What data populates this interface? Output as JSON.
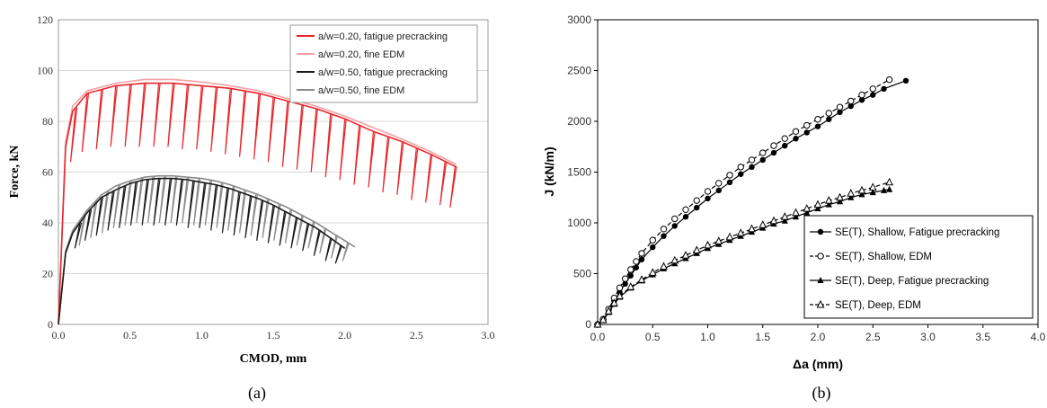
{
  "chart_data": [
    {
      "id": "a",
      "type": "line",
      "caption": "(a)",
      "xlabel": "CMOD, mm",
      "ylabel": "Force, kN",
      "xlim": [
        0,
        3.0
      ],
      "ylim": [
        0,
        120
      ],
      "xticks": [
        "0.0",
        "0.5",
        "1.0",
        "1.5",
        "2.0",
        "2.5",
        "3.0"
      ],
      "yticks": [
        "0",
        "20",
        "40",
        "60",
        "80",
        "100",
        "120"
      ],
      "grid": true,
      "legend_position": "top-right",
      "series": [
        {
          "name": "a/w=0.20, fatigue precracking",
          "color": "#e8262b",
          "envelope": [
            [
              0,
              0
            ],
            [
              0.05,
              70
            ],
            [
              0.1,
              84
            ],
            [
              0.2,
              91
            ],
            [
              0.4,
              94
            ],
            [
              0.6,
              95
            ],
            [
              0.8,
              95
            ],
            [
              1.0,
              94
            ],
            [
              1.2,
              93
            ],
            [
              1.4,
              91
            ],
            [
              1.6,
              88
            ],
            [
              1.8,
              85
            ],
            [
              2.0,
              81
            ],
            [
              2.2,
              76
            ],
            [
              2.4,
              72
            ],
            [
              2.6,
              67
            ],
            [
              2.78,
              62
            ]
          ],
          "unloads": [
            [
              0.12,
              64
            ],
            [
              0.2,
              68
            ],
            [
              0.3,
              69
            ],
            [
              0.4,
              70
            ],
            [
              0.5,
              70
            ],
            [
              0.6,
              70
            ],
            [
              0.7,
              70
            ],
            [
              0.8,
              70
            ],
            [
              0.9,
              69
            ],
            [
              1.0,
              69
            ],
            [
              1.1,
              68
            ],
            [
              1.2,
              67
            ],
            [
              1.3,
              66
            ],
            [
              1.4,
              65
            ],
            [
              1.5,
              64
            ],
            [
              1.6,
              62
            ],
            [
              1.7,
              61
            ],
            [
              1.8,
              60
            ],
            [
              1.9,
              58
            ],
            [
              2.0,
              57
            ],
            [
              2.1,
              55
            ],
            [
              2.2,
              54
            ],
            [
              2.3,
              52
            ],
            [
              2.4,
              51
            ],
            [
              2.5,
              49
            ],
            [
              2.6,
              48
            ],
            [
              2.7,
              47
            ],
            [
              2.77,
              46
            ]
          ]
        },
        {
          "name": "a/w=0.20, fine EDM",
          "color": "#f4a0a4",
          "envelope": [
            [
              0,
              0
            ],
            [
              0.05,
              72
            ],
            [
              0.1,
              86
            ],
            [
              0.2,
              92
            ],
            [
              0.4,
              95
            ],
            [
              0.6,
              96.5
            ],
            [
              0.8,
              96.5
            ],
            [
              1.0,
              95.5
            ],
            [
              1.2,
              94
            ],
            [
              1.4,
              92
            ],
            [
              1.6,
              89
            ],
            [
              1.8,
              86
            ],
            [
              2.0,
              82
            ],
            [
              2.2,
              77.5
            ],
            [
              2.4,
              73
            ],
            [
              2.6,
              68
            ],
            [
              2.78,
              63
            ]
          ],
          "unloads": []
        },
        {
          "name": "a/w=0.50, fatigue precracking",
          "color": "#1a1a1a",
          "envelope": [
            [
              0,
              0
            ],
            [
              0.05,
              28
            ],
            [
              0.1,
              36
            ],
            [
              0.2,
              44
            ],
            [
              0.3,
              50
            ],
            [
              0.4,
              53
            ],
            [
              0.5,
              55.5
            ],
            [
              0.6,
              57
            ],
            [
              0.7,
              57.5
            ],
            [
              0.8,
              57.5
            ],
            [
              0.9,
              57
            ],
            [
              1.0,
              56
            ],
            [
              1.1,
              55
            ],
            [
              1.2,
              53.5
            ],
            [
              1.3,
              51.5
            ],
            [
              1.4,
              49.5
            ],
            [
              1.5,
              47
            ],
            [
              1.6,
              44
            ],
            [
              1.7,
              41
            ],
            [
              1.8,
              38
            ],
            [
              1.9,
              34
            ],
            [
              2.0,
              30
            ]
          ],
          "unloads": [
            [
              0.15,
              30
            ],
            [
              0.22,
              33
            ],
            [
              0.3,
              35
            ],
            [
              0.38,
              37
            ],
            [
              0.46,
              38
            ],
            [
              0.54,
              39
            ],
            [
              0.62,
              39
            ],
            [
              0.7,
              39
            ],
            [
              0.78,
              39
            ],
            [
              0.86,
              39
            ],
            [
              0.94,
              38
            ],
            [
              1.02,
              38
            ],
            [
              1.1,
              37
            ],
            [
              1.18,
              36
            ],
            [
              1.26,
              35
            ],
            [
              1.34,
              34
            ],
            [
              1.42,
              33
            ],
            [
              1.5,
              32
            ],
            [
              1.58,
              31
            ],
            [
              1.66,
              30
            ],
            [
              1.74,
              29
            ],
            [
              1.82,
              27
            ],
            [
              1.9,
              25
            ],
            [
              1.97,
              24
            ]
          ]
        },
        {
          "name": "a/w=0.50, fine EDM",
          "color": "#8a8a8a",
          "envelope": [
            [
              0,
              0
            ],
            [
              0.05,
              29
            ],
            [
              0.1,
              37
            ],
            [
              0.2,
              45
            ],
            [
              0.3,
              51
            ],
            [
              0.4,
              54.5
            ],
            [
              0.5,
              56.5
            ],
            [
              0.6,
              58
            ],
            [
              0.7,
              58.5
            ],
            [
              0.8,
              58.5
            ],
            [
              0.9,
              58
            ],
            [
              1.0,
              57.5
            ],
            [
              1.1,
              56.5
            ],
            [
              1.2,
              55
            ],
            [
              1.3,
              53
            ],
            [
              1.4,
              51
            ],
            [
              1.5,
              48.5
            ],
            [
              1.6,
              46
            ],
            [
              1.7,
              43
            ],
            [
              1.8,
              40
            ],
            [
              1.9,
              36.5
            ],
            [
              2.0,
              33
            ],
            [
              2.07,
              30.5
            ]
          ],
          "unloads": [
            [
              0.18,
              31
            ],
            [
              0.26,
              34
            ],
            [
              0.34,
              36
            ],
            [
              0.42,
              38
            ],
            [
              0.5,
              39
            ],
            [
              0.58,
              40
            ],
            [
              0.66,
              40
            ],
            [
              0.74,
              40
            ],
            [
              0.82,
              40
            ],
            [
              0.9,
              40
            ],
            [
              0.98,
              39
            ],
            [
              1.06,
              39
            ],
            [
              1.14,
              38
            ],
            [
              1.22,
              37
            ],
            [
              1.3,
              36
            ],
            [
              1.38,
              35
            ],
            [
              1.46,
              34
            ],
            [
              1.54,
              33
            ],
            [
              1.62,
              32
            ],
            [
              1.7,
              31
            ],
            [
              1.78,
              30
            ],
            [
              1.86,
              28
            ],
            [
              1.94,
              26
            ],
            [
              2.02,
              25
            ]
          ]
        }
      ]
    },
    {
      "id": "b",
      "type": "line",
      "caption": "(b)",
      "xlabel": "Δa (mm)",
      "ylabel": "J (kN/m)",
      "xlim": [
        0,
        4.0
      ],
      "ylim": [
        0,
        3000
      ],
      "xticks": [
        "0.0",
        "0.5",
        "1.0",
        "1.5",
        "2.0",
        "2.5",
        "3.0",
        "3.5",
        "4.0"
      ],
      "yticks": [
        "0",
        "500",
        "1000",
        "1500",
        "2000",
        "2500",
        "3000"
      ],
      "grid": false,
      "legend_position": "bottom-right",
      "series": [
        {
          "name": "SE(T), Shallow, Fatigue precracking",
          "marker": "filled-circle",
          "dash": "solid",
          "x": [
            0,
            0.05,
            0.1,
            0.15,
            0.2,
            0.25,
            0.3,
            0.35,
            0.4,
            0.5,
            0.6,
            0.7,
            0.8,
            0.9,
            1.0,
            1.1,
            1.2,
            1.3,
            1.4,
            1.5,
            1.6,
            1.7,
            1.8,
            1.9,
            2.0,
            2.1,
            2.2,
            2.3,
            2.4,
            2.5,
            2.6,
            2.8
          ],
          "y": [
            0,
            40,
            130,
            230,
            320,
            400,
            480,
            560,
            640,
            760,
            870,
            970,
            1060,
            1150,
            1240,
            1320,
            1400,
            1480,
            1550,
            1620,
            1690,
            1760,
            1830,
            1890,
            1950,
            2020,
            2090,
            2150,
            2210,
            2260,
            2320,
            2400
          ]
        },
        {
          "name": "SE(T), Shallow, EDM",
          "marker": "open-circle",
          "dash": "dashed",
          "x": [
            0,
            0.05,
            0.1,
            0.15,
            0.2,
            0.25,
            0.3,
            0.35,
            0.4,
            0.5,
            0.6,
            0.7,
            0.8,
            0.9,
            1.0,
            1.1,
            1.2,
            1.3,
            1.4,
            1.5,
            1.6,
            1.7,
            1.8,
            1.9,
            2.0,
            2.1,
            2.2,
            2.3,
            2.4,
            2.5,
            2.65
          ],
          "y": [
            0,
            50,
            150,
            260,
            360,
            450,
            540,
            620,
            700,
            830,
            940,
            1040,
            1130,
            1220,
            1310,
            1390,
            1470,
            1550,
            1620,
            1690,
            1760,
            1830,
            1900,
            1960,
            2020,
            2080,
            2140,
            2200,
            2260,
            2320,
            2410
          ]
        },
        {
          "name": "SE(T), Deep, Fatigue precracking",
          "marker": "filled-triangle",
          "dash": "solid",
          "x": [
            0,
            0.05,
            0.1,
            0.15,
            0.2,
            0.3,
            0.4,
            0.5,
            0.6,
            0.7,
            0.8,
            0.9,
            1.0,
            1.1,
            1.2,
            1.3,
            1.4,
            1.5,
            1.6,
            1.7,
            1.8,
            1.9,
            2.0,
            2.1,
            2.2,
            2.3,
            2.4,
            2.5,
            2.6,
            2.65
          ],
          "y": [
            0,
            40,
            120,
            200,
            270,
            360,
            430,
            490,
            550,
            600,
            650,
            700,
            750,
            790,
            830,
            870,
            910,
            950,
            990,
            1020,
            1060,
            1100,
            1140,
            1180,
            1210,
            1250,
            1280,
            1300,
            1320,
            1330
          ]
        },
        {
          "name": "SE(T), Deep, EDM",
          "marker": "open-triangle",
          "dash": "dashed",
          "x": [
            0,
            0.05,
            0.1,
            0.15,
            0.2,
            0.3,
            0.4,
            0.5,
            0.6,
            0.7,
            0.8,
            0.9,
            1.0,
            1.1,
            1.2,
            1.3,
            1.4,
            1.5,
            1.6,
            1.7,
            1.8,
            1.9,
            2.0,
            2.1,
            2.2,
            2.3,
            2.4,
            2.5,
            2.65
          ],
          "y": [
            0,
            45,
            130,
            210,
            280,
            370,
            440,
            510,
            570,
            630,
            680,
            730,
            780,
            820,
            860,
            900,
            940,
            980,
            1020,
            1060,
            1100,
            1140,
            1180,
            1220,
            1250,
            1290,
            1320,
            1350,
            1400
          ]
        }
      ]
    }
  ]
}
